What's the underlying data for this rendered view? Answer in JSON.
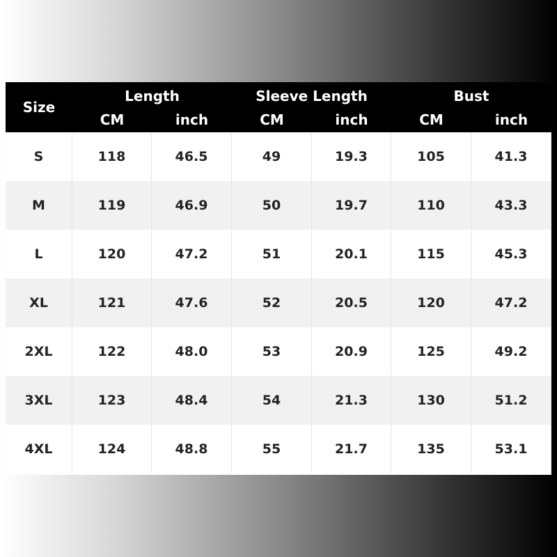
{
  "table": {
    "corner": "Size",
    "groups": [
      "Length",
      "Sleeve Length",
      "Bust"
    ],
    "units": [
      "CM",
      "inch",
      "CM",
      "inch",
      "CM",
      "inch"
    ],
    "rows": [
      [
        "S",
        "118",
        "46.5",
        "49",
        "19.3",
        "105",
        "41.3"
      ],
      [
        "M",
        "119",
        "46.9",
        "50",
        "19.7",
        "110",
        "43.3"
      ],
      [
        "L",
        "120",
        "47.2",
        "51",
        "20.1",
        "115",
        "45.3"
      ],
      [
        "XL",
        "121",
        "47.6",
        "52",
        "20.5",
        "120",
        "47.2"
      ],
      [
        "2XL",
        "122",
        "48.0",
        "53",
        "20.9",
        "125",
        "49.2"
      ],
      [
        "3XL",
        "123",
        "48.4",
        "54",
        "21.3",
        "130",
        "51.2"
      ],
      [
        "4XL",
        "124",
        "48.8",
        "55",
        "21.7",
        "135",
        "53.1"
      ]
    ]
  }
}
